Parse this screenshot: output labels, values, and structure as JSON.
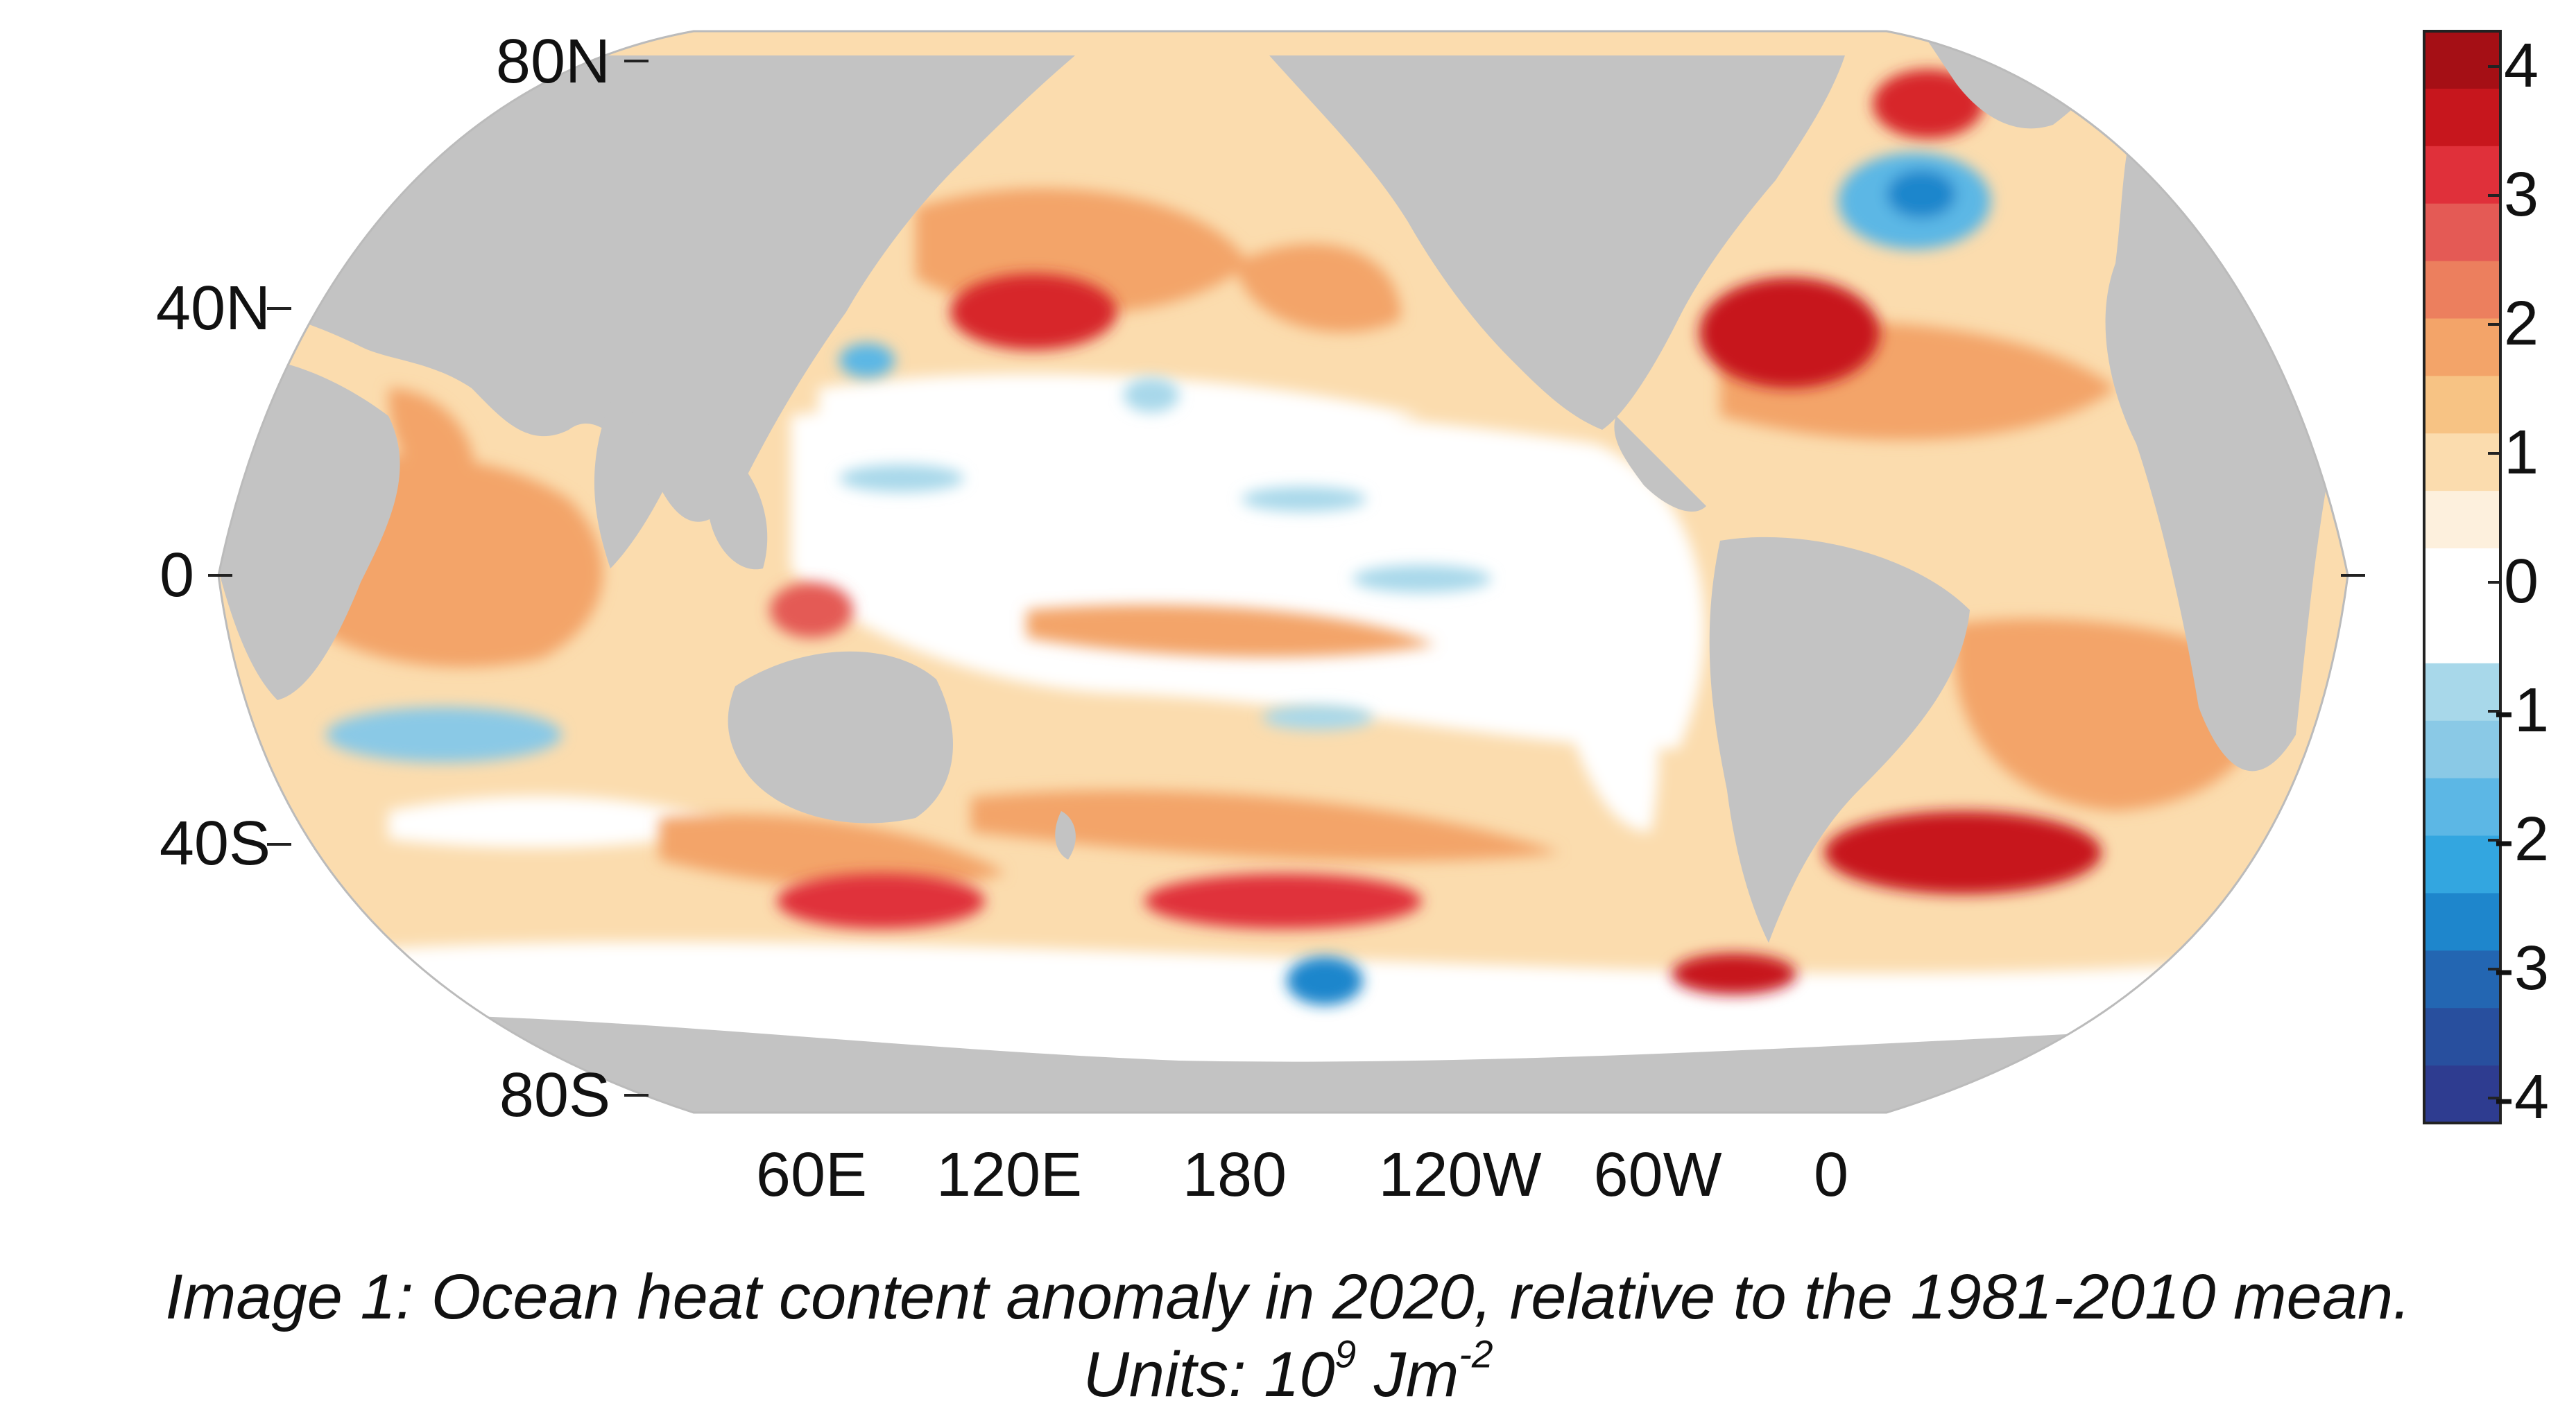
{
  "map": {
    "projection": "robinson",
    "center_longitude": "180",
    "latitude_labels": [
      "80N",
      "40N",
      "0",
      "40S",
      "80S"
    ],
    "longitude_labels": [
      "60E",
      "120E",
      "180",
      "120W",
      "60W",
      "0"
    ],
    "land_color": "#c3c3c3",
    "ocean_background_color": "#ffffff"
  },
  "colorbar": {
    "orientation": "vertical",
    "tick_labels": [
      "4",
      "3",
      "2",
      "1",
      "0",
      "-1",
      "-2",
      "-3",
      "-4"
    ],
    "colors_top_to_bottom": [
      "#a50f15",
      "#c7161d",
      "#e0303a",
      "#e45a55",
      "#ec7f5e",
      "#f3a469",
      "#f7c384",
      "#fbdcae",
      "#fdf0dd",
      "#ffffff",
      "#ffffff",
      "#a8d8ea",
      "#8ac9e6",
      "#5cb7e5",
      "#33a6e0",
      "#1e86cc",
      "#2366b2",
      "#284f9e",
      "#2e3c90"
    ]
  },
  "caption": {
    "line1": "Image 1: Ocean heat content anomaly in 2020, relative to the 1981-2010 mean.",
    "line2_prefix": "Units: 10",
    "line2_superscript": "9",
    "line2_unit": " Jm",
    "line2_unit_superscript": "-2"
  }
}
